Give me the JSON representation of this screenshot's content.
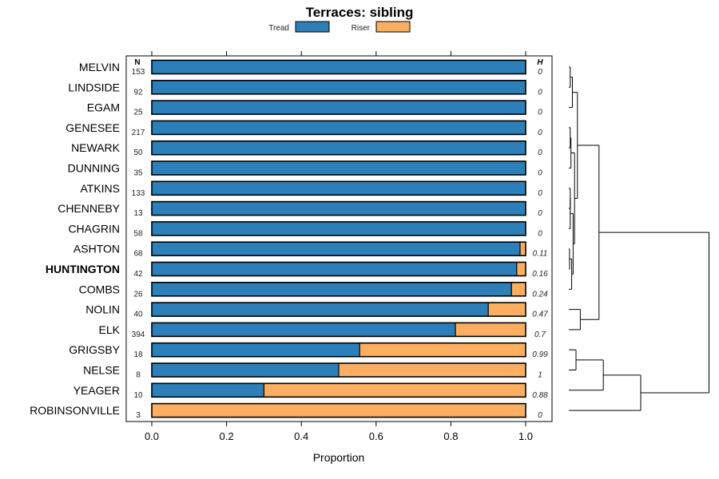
{
  "chart_data": {
    "type": "bar",
    "stacked": true,
    "orientation": "horizontal",
    "title": "Terraces: sibling",
    "xlabel": "Proportion",
    "xlim": [
      0,
      1
    ],
    "xticks": [
      0.0,
      0.2,
      0.4,
      0.6,
      0.8,
      1.0
    ],
    "xtick_labels": [
      "0.0",
      "0.2",
      "0.4",
      "0.6",
      "0.8",
      "1.0"
    ],
    "n_header": "N",
    "h_header": "H",
    "highlight": "HUNTINGTON",
    "legend": [
      {
        "name": "Tread",
        "color": "#2c7fb8"
      },
      {
        "name": "Riser",
        "color": "#fdae61"
      }
    ],
    "categories": [
      "MELVIN",
      "LINDSIDE",
      "EGAM",
      "GENESEE",
      "NEWARK",
      "DUNNING",
      "ATKINS",
      "CHENNEBY",
      "CHAGRIN",
      "ASHTON",
      "HUNTINGTON",
      "COMBS",
      "NOLIN",
      "ELK",
      "GRIGSBY",
      "NELSE",
      "YEAGER",
      "ROBINSONVILLE"
    ],
    "n": [
      "153",
      "92",
      "25",
      "217",
      "50",
      "35",
      "133",
      "13",
      "58",
      "68",
      "42",
      "26",
      "40",
      "394",
      "18",
      "8",
      "10",
      "3"
    ],
    "h": [
      "0",
      "0",
      "0",
      "0",
      "0",
      "0",
      "0",
      "0",
      "0",
      "0.11",
      "0.16",
      "0.24",
      "0.47",
      "0.7",
      "0.99",
      "1",
      "0.88",
      "0"
    ],
    "series": [
      {
        "name": "Tread",
        "values": [
          1,
          1,
          1,
          1,
          1,
          1,
          1,
          1,
          1,
          0.985,
          0.976,
          0.962,
          0.9,
          0.812,
          0.556,
          0.5,
          0.3,
          0
        ]
      },
      {
        "name": "Riser",
        "values": [
          0,
          0,
          0,
          0,
          0,
          0,
          0,
          0,
          0,
          0.015,
          0.024,
          0.038,
          0.1,
          0.188,
          0.444,
          0.5,
          0.7,
          1
        ]
      }
    ],
    "dendrogram": {
      "leaf_order": [
        "MELVIN",
        "LINDSIDE",
        "EGAM",
        "GENESEE",
        "NEWARK",
        "DUNNING",
        "ATKINS",
        "CHENNEBY",
        "CHAGRIN",
        "ASHTON",
        "HUNTINGTON",
        "COMBS",
        "NOLIN",
        "ELK",
        "GRIGSBY",
        "NELSE",
        "YEAGER",
        "ROBINSONVILLE"
      ],
      "merges": [
        {
          "left": [
            0
          ],
          "right": [
            1
          ],
          "height": 0.02
        },
        {
          "left": [
            0,
            1
          ],
          "right": [
            2
          ],
          "height": 0.05
        },
        {
          "left": [
            3
          ],
          "right": [
            4
          ],
          "height": 0.02
        },
        {
          "left": [
            3,
            4
          ],
          "right": [
            5
          ],
          "height": 0.03
        },
        {
          "left": [
            6
          ],
          "right": [
            7
          ],
          "height": 0.02
        },
        {
          "left": [
            6,
            7
          ],
          "right": [
            8
          ],
          "height": 0.02
        },
        {
          "left": [
            9
          ],
          "right": [
            10
          ],
          "height": 0.01
        },
        {
          "left": [
            9,
            10
          ],
          "right": [
            11
          ],
          "height": 0.04
        },
        {
          "left": [
            6,
            7,
            8
          ],
          "right": [
            9,
            10,
            11
          ],
          "height": 0.06
        },
        {
          "left": [
            3,
            4,
            5
          ],
          "right": [
            6,
            7,
            8,
            9,
            10,
            11
          ],
          "height": 0.08
        },
        {
          "left": [
            0,
            1,
            2
          ],
          "right": [
            3,
            4,
            5,
            6,
            7,
            8,
            9,
            10,
            11
          ],
          "height": 0.12
        },
        {
          "left": [
            12
          ],
          "right": [
            13
          ],
          "height": 0.16
        },
        {
          "left": [
            0,
            1,
            2,
            3,
            4,
            5,
            6,
            7,
            8,
            9,
            10,
            11
          ],
          "right": [
            12,
            13
          ],
          "height": 0.42
        },
        {
          "left": [
            14
          ],
          "right": [
            15
          ],
          "height": 0.1
        },
        {
          "left": [
            14,
            15
          ],
          "right": [
            16
          ],
          "height": 0.48
        },
        {
          "left": [
            14,
            15,
            16
          ],
          "right": [
            17
          ],
          "height": 1.0
        },
        {
          "left": [
            0,
            1,
            2,
            3,
            4,
            5,
            6,
            7,
            8,
            9,
            10,
            11,
            12,
            13
          ],
          "right": [
            14,
            15,
            16,
            17
          ],
          "height": 1.95
        }
      ]
    }
  }
}
